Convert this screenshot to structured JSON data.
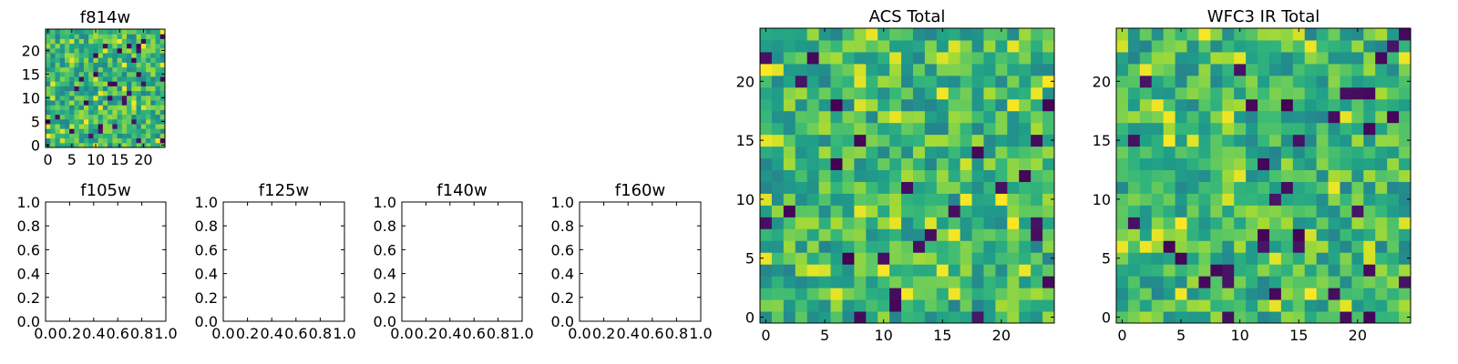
{
  "chart_data": [
    {
      "type": "heatmap",
      "title": "f814w",
      "xticks": [
        "0",
        "5",
        "10",
        "15",
        "20"
      ],
      "yticks": [
        "0",
        "5",
        "10",
        "15",
        "20"
      ],
      "xlim": [
        -0.5,
        24.5
      ],
      "ylim": [
        -0.5,
        24.5
      ],
      "grid_size": [
        25,
        25
      ],
      "colormap": "viridis",
      "seed": 814
    },
    {
      "type": "empty",
      "title": "f105w",
      "xticks": [
        "0.0",
        "0.2",
        "0.4",
        "0.6",
        "0.8",
        "1.0"
      ],
      "yticks": [
        "0.0",
        "0.2",
        "0.4",
        "0.6",
        "0.8",
        "1.0"
      ],
      "xlim": [
        0,
        1
      ],
      "ylim": [
        0,
        1
      ]
    },
    {
      "type": "empty",
      "title": "f125w",
      "xticks": [
        "0.0",
        "0.2",
        "0.4",
        "0.6",
        "0.8",
        "1.0"
      ],
      "yticks": [
        "0.0",
        "0.2",
        "0.4",
        "0.6",
        "0.8",
        "1.0"
      ],
      "xlim": [
        0,
        1
      ],
      "ylim": [
        0,
        1
      ]
    },
    {
      "type": "empty",
      "title": "f140w",
      "xticks": [
        "0.0",
        "0.2",
        "0.4",
        "0.6",
        "0.8",
        "1.0"
      ],
      "yticks": [
        "0.0",
        "0.2",
        "0.4",
        "0.6",
        "0.8",
        "1.0"
      ],
      "xlim": [
        0,
        1
      ],
      "ylim": [
        0,
        1
      ]
    },
    {
      "type": "empty",
      "title": "f160w",
      "xticks": [
        "0.0",
        "0.2",
        "0.4",
        "0.6",
        "0.8",
        "1.0"
      ],
      "yticks": [
        "0.0",
        "0.2",
        "0.4",
        "0.6",
        "0.8",
        "1.0"
      ],
      "xlim": [
        0,
        1
      ],
      "ylim": [
        0,
        1
      ]
    },
    {
      "type": "heatmap",
      "title": "ACS Total",
      "xticks": [
        "0",
        "5",
        "10",
        "15",
        "20"
      ],
      "yticks": [
        "0",
        "5",
        "10",
        "15",
        "20"
      ],
      "xlim": [
        -0.5,
        24.5
      ],
      "ylim": [
        -0.5,
        24.5
      ],
      "grid_size": [
        25,
        25
      ],
      "colormap": "viridis",
      "seed": 1001
    },
    {
      "type": "heatmap",
      "title": "WFC3 IR Total",
      "xticks": [
        "0",
        "5",
        "10",
        "15",
        "20"
      ],
      "yticks": [
        "0",
        "5",
        "10",
        "15",
        "20"
      ],
      "xlim": [
        -0.5,
        24.5
      ],
      "ylim": [
        -0.5,
        24.5
      ],
      "grid_size": [
        25,
        25
      ],
      "colormap": "viridis",
      "seed": 3003
    }
  ],
  "colors": {
    "viridis_dark": "#440154",
    "viridis_mid": "#21918c",
    "viridis_light": "#5ec962",
    "viridis_bright": "#fde725",
    "axis": "#000000"
  }
}
